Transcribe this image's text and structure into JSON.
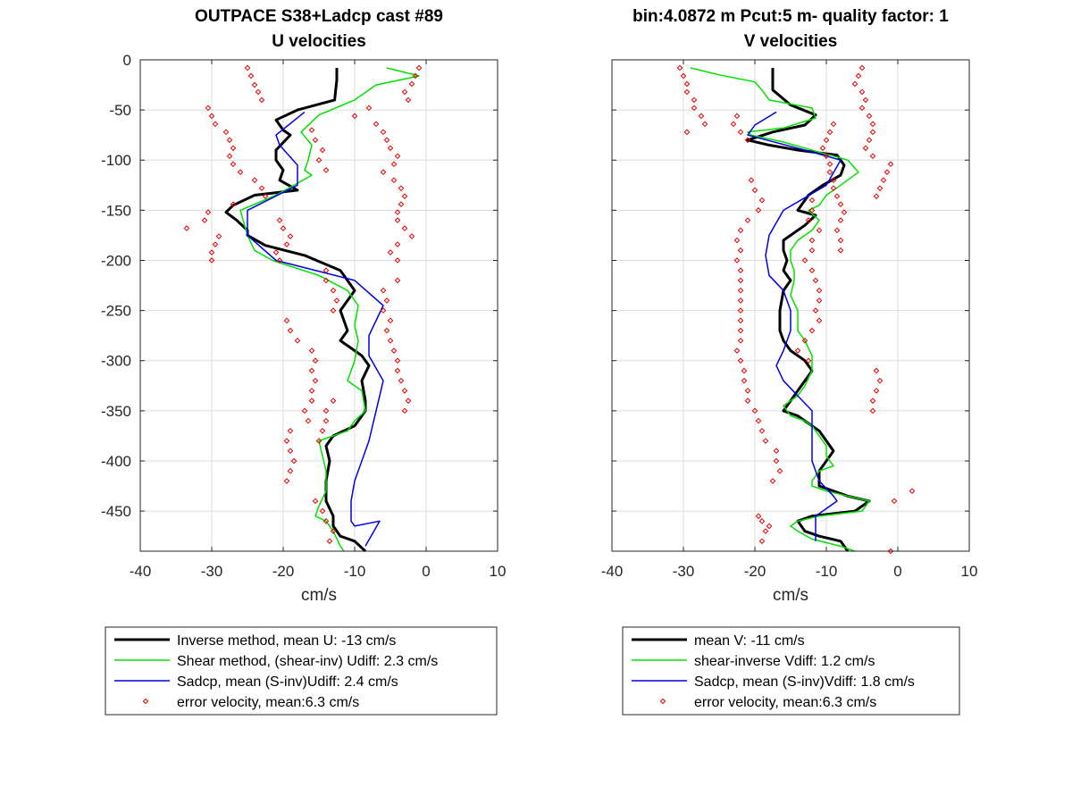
{
  "chart_data": [
    {
      "type": "line",
      "title": [
        "OUTPACE S38+Ladcp cast #89",
        "U velocities"
      ],
      "xlabel": "cm/s",
      "ylabel": "",
      "xlim": [
        -40,
        10
      ],
      "ylim": [
        -490,
        0
      ],
      "xticks": [
        -40,
        -30,
        -20,
        -10,
        0,
        10
      ],
      "yticks": [
        0,
        -50,
        -100,
        -150,
        -200,
        -250,
        -300,
        -350,
        -400,
        -450
      ],
      "grid": true,
      "legend_position": "bottom",
      "series": [
        {
          "name": "Inverse method, mean U:  -13 cm/s",
          "color": "#000000",
          "width": 3,
          "x": [
            -12.5,
            -12.5,
            -12.8,
            -18,
            -21,
            -20,
            -19,
            -21,
            -21,
            -20,
            -20.5,
            -18,
            -24,
            -27,
            -28,
            -26.5,
            -25,
            -25,
            -22.5,
            -17,
            -12,
            -10,
            -12,
            -11,
            -12,
            -9,
            -8,
            -9,
            -8.5,
            -8.5,
            -10,
            -13,
            -14,
            -13.5,
            -14,
            -14,
            -13,
            -13,
            -12,
            -10,
            -8.5
          ],
          "y": [
            -8,
            -20,
            -40,
            -50,
            -60,
            -70,
            -75,
            -90,
            -100,
            -110,
            -120,
            -130,
            -135,
            -145,
            -152,
            -160,
            -170,
            -175,
            -185,
            -195,
            -210,
            -230,
            -250,
            -270,
            -280,
            -295,
            -305,
            -320,
            -340,
            -350,
            -365,
            -375,
            -385,
            -400,
            -420,
            -440,
            -455,
            -465,
            -475,
            -480,
            -490
          ]
        },
        {
          "name": "Shear method, (shear-inv)  Udiff:  2.3 cm/s",
          "color": "#00e000",
          "width": 1.5,
          "x": [
            -5.5,
            -1,
            -7,
            -10,
            -15,
            -17.5,
            -16,
            -16.5,
            -17,
            -16,
            -21,
            -26,
            -25,
            -24,
            -21.5,
            -15,
            -11,
            -9.5,
            -10,
            -9.5,
            -10,
            -11,
            -9,
            -8.5,
            -10,
            -11,
            -15,
            -14.5,
            -14,
            -14,
            -15,
            -15.5,
            -14,
            -13,
            -12,
            -11.5
          ],
          "y": [
            -8,
            -16,
            -25,
            -40,
            -55,
            -72,
            -85,
            -100,
            -110,
            -115,
            -135,
            -150,
            -175,
            -190,
            -200,
            -215,
            -230,
            -245,
            -265,
            -280,
            -300,
            -320,
            -330,
            -350,
            -360,
            -370,
            -380,
            -395,
            -410,
            -430,
            -445,
            -455,
            -460,
            -470,
            -485,
            -490
          ]
        },
        {
          "name": "Sadcp, mean (S-inv)Udiff: 2.4 cm/s",
          "color": "#0000e6",
          "width": 1.5,
          "x": [
            -17,
            -21,
            -20.5,
            -18,
            -18,
            -25,
            -25,
            -21,
            -10,
            -6,
            -8,
            -8,
            -6,
            -7,
            -8,
            -9,
            -10,
            -10.5,
            -10.5,
            -10,
            -6.5,
            -8.5
          ],
          "y": [
            -52,
            -75,
            -85,
            -105,
            -125,
            -150,
            -175,
            -200,
            -220,
            -245,
            -275,
            -295,
            -320,
            -350,
            -380,
            -400,
            -420,
            -440,
            -460,
            -465,
            -460,
            -485
          ]
        },
        {
          "name": "error velocity, mean:6.3 cm/s",
          "color": "#e00000",
          "style": "markers",
          "x": [
            -25,
            -24.5,
            -24,
            -23.5,
            -23,
            -30.5,
            -30,
            -29.5,
            -28,
            -27.5,
            -27,
            -27.5,
            -27,
            -26,
            -24,
            -23,
            -22.5,
            -27,
            -30.5,
            -31,
            -33.5,
            -29,
            -29.5,
            -30,
            -30,
            -20.5,
            -20,
            -19,
            -19.5,
            -21,
            -20.5,
            -19.5,
            -19,
            -18,
            -16,
            -15.5,
            -16,
            -15.5,
            -16,
            -16,
            -17,
            -16.5,
            -19,
            -19.5,
            -19,
            -18.5,
            -19,
            -19.5,
            -14,
            -15,
            -14.5,
            -15.5,
            -16,
            -14,
            -14,
            -13,
            -12.5,
            -13,
            -13,
            -14,
            -14,
            -14.5,
            -15,
            -15.5,
            -14.5,
            -14,
            -13,
            -13.5,
            -1,
            -1.5,
            -2,
            -3,
            -2.5,
            -8,
            -10,
            -7,
            -6,
            -5.5,
            -5,
            -4,
            -4.5,
            -6,
            -4.5,
            -3.5,
            -3,
            -3.5,
            -4,
            -4,
            -3,
            -2,
            -4,
            -5,
            -4,
            -4,
            -6,
            -5.5,
            -6,
            -5,
            -5.5,
            -5,
            -4.5,
            -4,
            -4,
            -3.5,
            -3,
            -2.5,
            -3
          ],
          "y": [
            -8,
            -16,
            -25,
            -32,
            -40,
            -48,
            -56,
            -64,
            -72,
            -80,
            -88,
            -96,
            -104,
            -112,
            -120,
            -128,
            -136,
            -144,
            -152,
            -160,
            -168,
            -176,
            -184,
            -192,
            -200,
            -160,
            -168,
            -176,
            -184,
            -192,
            -200,
            -260,
            -270,
            -280,
            -290,
            -300,
            -310,
            -320,
            -330,
            -340,
            -350,
            -360,
            -370,
            -380,
            -390,
            -400,
            -410,
            -420,
            -110,
            -100,
            -90,
            -80,
            -70,
            -210,
            -220,
            -230,
            -240,
            -250,
            -340,
            -350,
            -360,
            -370,
            -380,
            -440,
            -450,
            -460,
            -470,
            -480,
            -8,
            -16,
            -24,
            -32,
            -40,
            -48,
            -56,
            -64,
            -72,
            -80,
            -88,
            -96,
            -104,
            -112,
            -120,
            -128,
            -136,
            -144,
            -152,
            -160,
            -168,
            -176,
            -184,
            -192,
            -200,
            -220,
            -230,
            -240,
            -250,
            -260,
            -270,
            -280,
            -290,
            -300,
            -310,
            -320,
            -330,
            -340,
            -350
          ]
        }
      ]
    },
    {
      "type": "line",
      "title": [
        "bin:4.0872 m  Pcut:5 m- quality factor:  1",
        "V velocities"
      ],
      "xlabel": "cm/s",
      "ylabel": "",
      "xlim": [
        -40,
        10
      ],
      "ylim": [
        -490,
        0
      ],
      "xticks": [
        -40,
        -30,
        -20,
        -10,
        0,
        10
      ],
      "yticks": [
        0,
        -50,
        -100,
        -150,
        -200,
        -250,
        -300,
        -350,
        -400,
        -450
      ],
      "grid": true,
      "legend_position": "bottom",
      "series": [
        {
          "name": "mean V:  -11 cm/s",
          "color": "#000000",
          "width": 3,
          "x": [
            -17.5,
            -17.5,
            -17.5,
            -15,
            -11.5,
            -13,
            -17.5,
            -21,
            -18,
            -14,
            -8.5,
            -7.5,
            -8,
            -10.5,
            -12.5,
            -13,
            -14,
            -11.5,
            -13,
            -15,
            -16,
            -16,
            -15.5,
            -16,
            -15,
            -16,
            -16.5,
            -16.5,
            -16,
            -15,
            -13,
            -12,
            -13,
            -14,
            -15,
            -16,
            -14,
            -13,
            -11,
            -10,
            -9,
            -10,
            -11,
            -11,
            -9,
            -7,
            -4,
            -6,
            -12,
            -14,
            -13,
            -11,
            -8,
            -7
          ],
          "y": [
            -8,
            -15,
            -30,
            -45,
            -55,
            -65,
            -72,
            -80,
            -85,
            -90,
            -95,
            -105,
            -115,
            -125,
            -135,
            -140,
            -150,
            -155,
            -165,
            -175,
            -180,
            -190,
            -200,
            -210,
            -220,
            -230,
            -250,
            -270,
            -280,
            -290,
            -300,
            -310,
            -320,
            -330,
            -340,
            -350,
            -355,
            -360,
            -370,
            -380,
            -390,
            -400,
            -410,
            -425,
            -430,
            -435,
            -440,
            -450,
            -455,
            -460,
            -470,
            -475,
            -480,
            -490
          ]
        },
        {
          "name": "shear-inverse Vdiff:  1.2 cm/s",
          "color": "#00e000",
          "width": 1.5,
          "x": [
            -29,
            -25,
            -20,
            -19,
            -18,
            -12,
            -11.5,
            -16,
            -21,
            -20.5,
            -16,
            -11,
            -7,
            -5.5,
            -8,
            -10,
            -11,
            -12.5,
            -11,
            -12,
            -14,
            -15,
            -15,
            -14.5,
            -14.5,
            -15,
            -14,
            -14,
            -13,
            -12,
            -12,
            -13,
            -14,
            -16,
            -15,
            -13,
            -12,
            -11,
            -10,
            -10,
            -9,
            -11,
            -12,
            -12,
            -10,
            -7,
            -4,
            -5,
            -11,
            -14,
            -15,
            -14,
            -12,
            -8,
            -6
          ],
          "y": [
            -8,
            -15,
            -22,
            -30,
            -40,
            -48,
            -58,
            -68,
            -72,
            -75,
            -82,
            -92,
            -100,
            -112,
            -125,
            -135,
            -145,
            -150,
            -160,
            -170,
            -180,
            -190,
            -200,
            -210,
            -220,
            -235,
            -250,
            -270,
            -280,
            -295,
            -310,
            -325,
            -335,
            -345,
            -355,
            -360,
            -365,
            -375,
            -385,
            -395,
            -405,
            -410,
            -420,
            -425,
            -430,
            -435,
            -440,
            -450,
            -455,
            -460,
            -465,
            -470,
            -478,
            -485,
            -490
          ]
        },
        {
          "name": "Sadcp, mean (S-inv)Vdiff: 1.8 cm/s",
          "color": "#0000e6",
          "width": 1.5,
          "x": [
            -17,
            -20,
            -21,
            -13,
            -8,
            -10,
            -16,
            -18,
            -18.5,
            -18,
            -16,
            -15,
            -15,
            -16,
            -17,
            -16,
            -12,
            -12,
            -12,
            -11,
            -9,
            -8.5,
            -11.5,
            -11.5
          ],
          "y": [
            -52,
            -65,
            -75,
            -90,
            -100,
            -125,
            -150,
            -175,
            -195,
            -215,
            -230,
            -250,
            -270,
            -290,
            -305,
            -320,
            -350,
            -375,
            -400,
            -420,
            -435,
            -440,
            -455,
            -480
          ]
        },
        {
          "name": "error velocity, mean:6.3 cm/s",
          "color": "#e00000",
          "style": "markers",
          "x": [
            -30.5,
            -30,
            -29.5,
            -29.5,
            -28.5,
            -28.5,
            -27.5,
            -27,
            -29.5,
            -22.5,
            -23,
            -22,
            -21,
            -20.5,
            -20,
            -19,
            -19.5,
            -21,
            -22,
            -22.5,
            -22,
            -22.5,
            -22,
            -22,
            -22,
            -22,
            -22,
            -22,
            -22,
            -22,
            -22.5,
            -22,
            -21.5,
            -21.5,
            -21,
            -21,
            -20,
            -19.5,
            -19,
            -18.5,
            -17,
            -17,
            -16.5,
            -17.5,
            -19.5,
            -19,
            -18,
            -18.5,
            -19,
            -12,
            -12,
            -12.5,
            -11,
            -12,
            -12,
            -13,
            -12,
            -11.5,
            -11,
            -11,
            -11.5,
            -11,
            -12,
            -13,
            -14,
            -12.5,
            -5,
            -5.5,
            -6,
            -5,
            -4.5,
            -5,
            -4,
            -3.5,
            -3.5,
            -4,
            -4.5,
            -3.5,
            -9,
            -9.5,
            -10,
            -10.5,
            -10,
            -9.5,
            -9.5,
            -9,
            -9,
            -8.5,
            -8,
            -7.5,
            -8,
            -8.5,
            -8,
            -8,
            -1,
            -1.5,
            -2,
            -2.5,
            -3,
            -3,
            -2.5,
            -3,
            -3.5,
            -3.5,
            2,
            -0.5,
            -1
          ],
          "y": [
            -8,
            -16,
            -24,
            -32,
            -40,
            -48,
            -56,
            -64,
            -72,
            -56,
            -64,
            -72,
            -80,
            -120,
            -130,
            -140,
            -150,
            -160,
            -170,
            -180,
            -190,
            -200,
            -210,
            -220,
            -230,
            -240,
            -250,
            -260,
            -270,
            -280,
            -290,
            -300,
            -310,
            -320,
            -330,
            -340,
            -350,
            -360,
            -370,
            -380,
            -390,
            -400,
            -410,
            -420,
            -455,
            -460,
            -465,
            -470,
            -480,
            -140,
            -150,
            -160,
            -170,
            -180,
            -190,
            -200,
            -210,
            -220,
            -230,
            -240,
            -250,
            -260,
            -270,
            -280,
            -290,
            -300,
            -8,
            -16,
            -24,
            -32,
            -40,
            -48,
            -56,
            -64,
            -72,
            -80,
            -88,
            -96,
            -64,
            -72,
            -80,
            -88,
            -96,
            -104,
            -112,
            -120,
            -128,
            -136,
            -144,
            -152,
            -160,
            -170,
            -180,
            -190,
            -104,
            -112,
            -120,
            -128,
            -136,
            -310,
            -320,
            -330,
            -340,
            -350,
            -430,
            -440,
            -490
          ]
        }
      ]
    }
  ]
}
